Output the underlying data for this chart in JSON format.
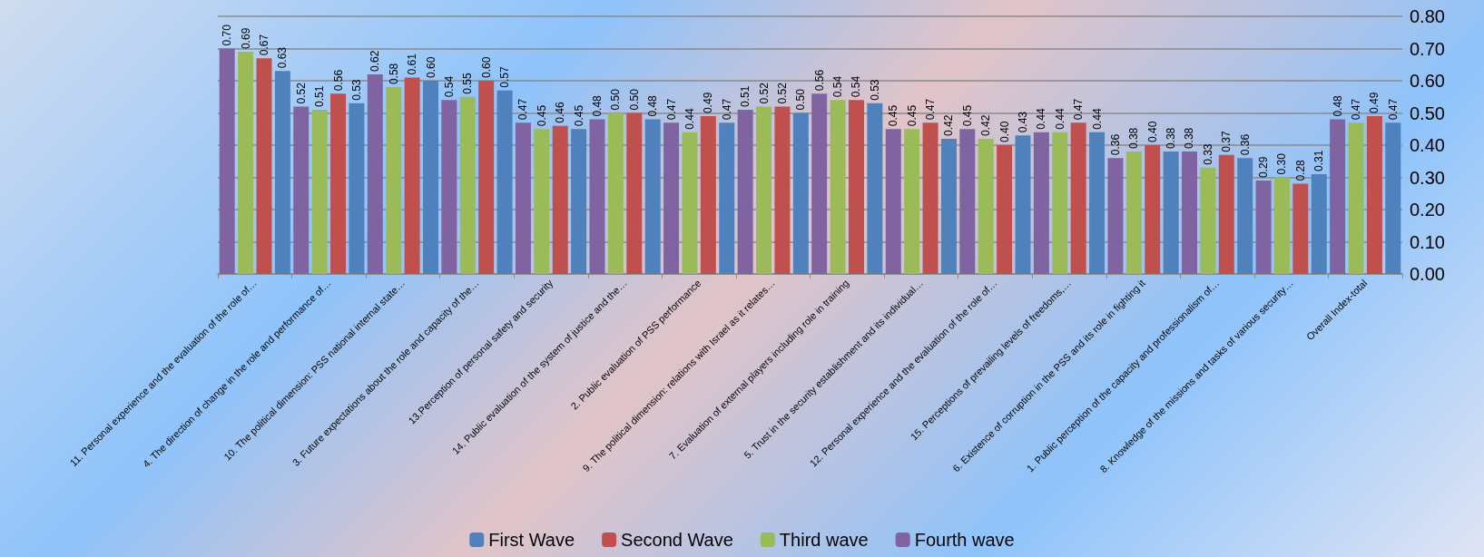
{
  "chart_data": {
    "type": "bar",
    "categories": [
      "11. Personal experience and the evaluation of the role of…",
      "4. The direction of change in the role and performance of…",
      "10. The political dimension: PSS national internal state…",
      "3. Future expectations about the role and capacity of the…",
      "13.Perception of personal safety and security",
      "14. Public evaluation of the system of justice and the…",
      "2. Public evaluation of PSS performance",
      "9. The political dimension: relations with Israel as it relates…",
      "7. Evaluation of external players including role in training",
      "5. Trust in the security establishment and its individual…",
      "12. Personal experience and the evaluation of the role of…",
      "15. Perceptions of prevailing levels of freedoms,…",
      "6. Existence of corruption in the PSS and its role in fighting it",
      "1. Public perception of the capacity and professionalism of…",
      "8. Knowledge of the missions and tasks of various security…",
      "Overall Index-total"
    ],
    "series": [
      {
        "name": "Fourth wave",
        "color": "#8064a2",
        "values": [
          0.7,
          0.52,
          0.62,
          0.54,
          0.47,
          0.48,
          0.47,
          0.51,
          0.56,
          0.45,
          0.45,
          0.44,
          0.36,
          0.38,
          0.29,
          0.48
        ],
        "value_labels": [
          "0.70",
          "0.52",
          "0.62",
          "0.54",
          "0.47",
          "0.48",
          "0.47",
          "0.51",
          "0.56",
          "0.45",
          "0.45",
          "0.44",
          "0.36",
          "0.38",
          "0.29",
          "0.48"
        ]
      },
      {
        "name": "Third wave",
        "color": "#9bbb59",
        "values": [
          0.69,
          0.51,
          0.58,
          0.55,
          0.45,
          0.5,
          0.44,
          0.52,
          0.54,
          0.45,
          0.42,
          0.44,
          0.38,
          0.33,
          0.3,
          0.47
        ],
        "value_labels": [
          "0.69",
          "0.51",
          "0.58",
          "0.55",
          "0.45",
          "0.50",
          "0.44",
          "0.52",
          "0.54",
          "0.45",
          "0.42",
          "0.44",
          "0.38",
          "0.33",
          "0.30",
          "0.47"
        ]
      },
      {
        "name": "Second Wave",
        "color": "#c0504d",
        "values": [
          0.67,
          0.56,
          0.61,
          0.6,
          0.46,
          0.5,
          0.49,
          0.52,
          0.54,
          0.47,
          0.4,
          0.47,
          0.4,
          0.37,
          0.28,
          0.49
        ],
        "value_labels": [
          "0.67",
          "0.56",
          "0.61",
          "0.60",
          "0.46",
          "0.50",
          "0.49",
          "0.52",
          "0.54",
          "0.47",
          "0.40",
          "0.47",
          "0.40",
          "0.37",
          "0.28",
          "0.49"
        ]
      },
      {
        "name": "First Wave",
        "color": "#4f81bd",
        "values": [
          0.63,
          0.53,
          0.6,
          0.57,
          0.45,
          0.48,
          0.47,
          0.5,
          0.53,
          0.42,
          0.43,
          0.44,
          0.38,
          0.36,
          0.31,
          0.47
        ],
        "value_labels": [
          "0.63",
          "0.53",
          "0.60",
          "0.57",
          "0.45",
          "0.48",
          "0.47",
          "0.50",
          "0.53",
          "0.42",
          "0.43",
          "0.44",
          "0.38",
          "0.36",
          "0.31",
          "0.47"
        ]
      }
    ],
    "ylim": [
      0,
      0.8
    ],
    "yticks": [
      {
        "value": 0,
        "label": "0.00"
      },
      {
        "value": 0.1,
        "label": "0.10"
      },
      {
        "value": 0.2,
        "label": "0.20"
      },
      {
        "value": 0.3,
        "label": "0.30"
      },
      {
        "value": 0.4,
        "label": "0.40"
      },
      {
        "value": 0.5,
        "label": "0.50"
      },
      {
        "value": 0.6,
        "label": "0.60"
      },
      {
        "value": 0.7,
        "label": "0.70"
      },
      {
        "value": 0.8,
        "label": "0.80"
      }
    ],
    "grid": "y",
    "legend": "bottom"
  }
}
